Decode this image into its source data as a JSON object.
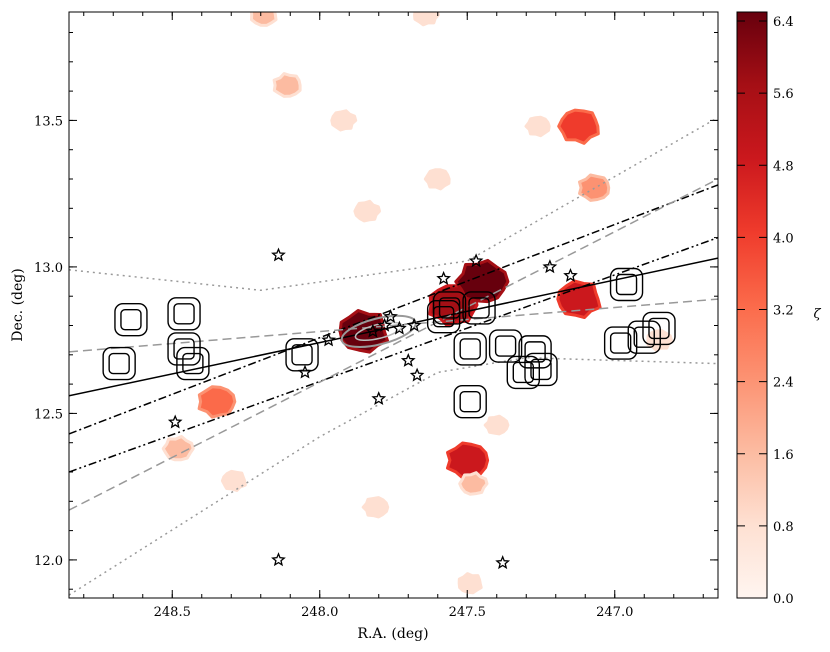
{
  "chart_data": {
    "type": "scatter",
    "title": "",
    "xlabel": "R.A. (deg)",
    "ylabel": "Dec. (deg)",
    "xlim": [
      248.85,
      246.65
    ],
    "ylim": [
      11.87,
      13.87
    ],
    "x_axis_inverted": true,
    "x_ticks": [
      "248.5",
      "248.0",
      "247.5",
      "247.0"
    ],
    "y_ticks": [
      "12.0",
      "12.5",
      "13.0",
      "13.5"
    ],
    "grid": false,
    "colorbar": {
      "label": "ζ",
      "range": [
        0.0,
        6.5
      ],
      "ticks": [
        "0.0",
        "0.8",
        "1.6",
        "2.4",
        "3.2",
        "4.0",
        "4.8",
        "5.6",
        "6.4"
      ],
      "colormap": "Reds",
      "colors": [
        "#fff5f0",
        "#fee0d2",
        "#fcbba1",
        "#fc9272",
        "#fb6a4a",
        "#ef3b2c",
        "#cb181d",
        "#a50f15",
        "#67000d"
      ]
    },
    "lines": [
      {
        "style": "solid",
        "color": "#000000",
        "points": [
          [
            248.85,
            12.56
          ],
          [
            246.65,
            13.03
          ]
        ]
      },
      {
        "style": "dashdot",
        "color": "#000000",
        "points": [
          [
            248.85,
            12.43
          ],
          [
            246.65,
            13.28
          ]
        ]
      },
      {
        "style": "dashdotdot",
        "color": "#000000",
        "points": [
          [
            248.85,
            12.3
          ],
          [
            246.65,
            13.1
          ]
        ]
      },
      {
        "style": "dashed",
        "color": "#999999",
        "points": [
          [
            248.85,
            12.71
          ],
          [
            246.65,
            12.89
          ]
        ]
      },
      {
        "style": "dashed",
        "color": "#999999",
        "points": [
          [
            248.85,
            12.17
          ],
          [
            246.65,
            13.3
          ]
        ]
      },
      {
        "style": "dotted",
        "color": "#999999",
        "points": [
          [
            248.85,
            12.99
          ],
          [
            248.2,
            12.92
          ],
          [
            247.5,
            13.02
          ],
          [
            246.65,
            13.51
          ]
        ]
      },
      {
        "style": "dotted",
        "color": "#999999",
        "points": [
          [
            248.85,
            11.88
          ],
          [
            248.0,
            12.42
          ],
          [
            247.6,
            12.64
          ],
          [
            247.3,
            12.69
          ],
          [
            246.65,
            12.67
          ]
        ]
      }
    ],
    "stars": [
      [
        248.14,
        13.04
      ],
      [
        248.14,
        12.0
      ],
      [
        247.38,
        11.99
      ],
      [
        248.49,
        12.47
      ],
      [
        248.05,
        12.64
      ],
      [
        247.97,
        12.75
      ],
      [
        247.8,
        12.55
      ],
      [
        247.67,
        12.63
      ],
      [
        247.58,
        12.96
      ],
      [
        247.47,
        13.02
      ],
      [
        247.22,
        13.0
      ],
      [
        247.15,
        12.97
      ],
      [
        247.7,
        12.68
      ],
      [
        247.78,
        12.8
      ],
      [
        247.76,
        12.83
      ],
      [
        247.73,
        12.79
      ],
      [
        247.68,
        12.8
      ],
      [
        247.82,
        12.78
      ]
    ],
    "black_contours": [
      [
        248.68,
        12.67
      ],
      [
        248.64,
        12.82
      ],
      [
        248.46,
        12.84
      ],
      [
        248.46,
        12.72
      ],
      [
        248.43,
        12.67
      ],
      [
        248.06,
        12.7
      ],
      [
        247.56,
        12.86
      ],
      [
        247.46,
        12.86
      ],
      [
        247.58,
        12.83
      ],
      [
        247.49,
        12.72
      ],
      [
        247.37,
        12.73
      ],
      [
        247.27,
        12.71
      ],
      [
        247.25,
        12.65
      ],
      [
        247.31,
        12.64
      ],
      [
        247.49,
        12.54
      ],
      [
        246.96,
        12.94
      ],
      [
        246.98,
        12.74
      ],
      [
        246.9,
        12.76
      ],
      [
        246.85,
        12.79
      ]
    ],
    "regions": [
      {
        "ra": 247.85,
        "dec": 12.78,
        "zeta": 6.2
      },
      {
        "ra": 247.55,
        "dec": 12.87,
        "zeta": 5.9
      },
      {
        "ra": 247.45,
        "dec": 12.95,
        "zeta": 6.3
      },
      {
        "ra": 247.12,
        "dec": 12.89,
        "zeta": 5.0
      },
      {
        "ra": 248.35,
        "dec": 12.54,
        "zeta": 3.6
      },
      {
        "ra": 248.48,
        "dec": 12.38,
        "zeta": 2.0
      },
      {
        "ra": 248.29,
        "dec": 12.27,
        "zeta": 0.9
      },
      {
        "ra": 247.5,
        "dec": 12.34,
        "zeta": 4.6
      },
      {
        "ra": 247.48,
        "dec": 12.26,
        "zeta": 1.5
      },
      {
        "ra": 247.12,
        "dec": 13.48,
        "zeta": 4.3
      },
      {
        "ra": 247.07,
        "dec": 13.27,
        "zeta": 2.4
      },
      {
        "ra": 247.84,
        "dec": 13.19,
        "zeta": 1.0
      },
      {
        "ra": 247.6,
        "dec": 13.3,
        "zeta": 1.0
      },
      {
        "ra": 248.11,
        "dec": 13.62,
        "zeta": 1.8
      },
      {
        "ra": 247.92,
        "dec": 13.5,
        "zeta": 0.9
      },
      {
        "ra": 247.26,
        "dec": 13.48,
        "zeta": 0.8
      },
      {
        "ra": 248.19,
        "dec": 13.86,
        "zeta": 1.5
      },
      {
        "ra": 247.64,
        "dec": 13.86,
        "zeta": 1.0
      },
      {
        "ra": 247.81,
        "dec": 12.18,
        "zeta": 1.0
      },
      {
        "ra": 247.49,
        "dec": 11.92,
        "zeta": 0.9
      },
      {
        "ra": 246.85,
        "dec": 12.75,
        "zeta": 1.0
      },
      {
        "ra": 247.4,
        "dec": 12.46,
        "zeta": 0.6
      }
    ]
  }
}
